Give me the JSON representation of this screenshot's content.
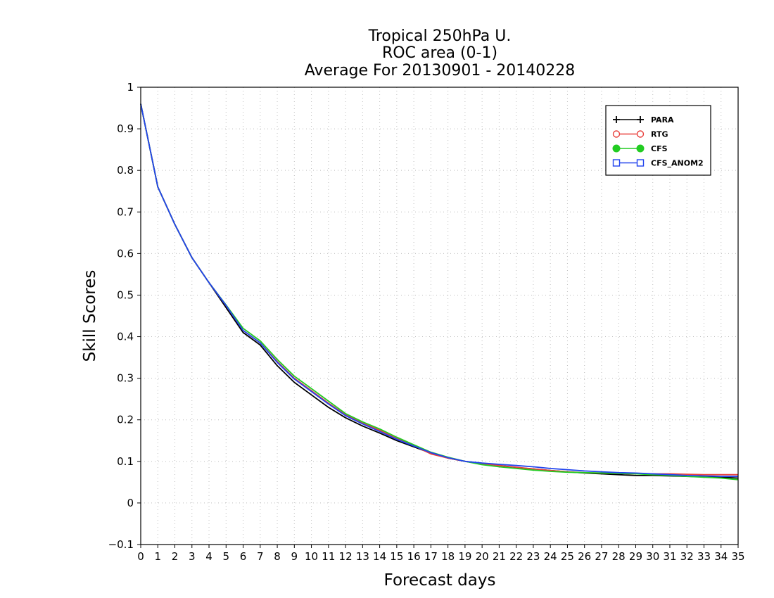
{
  "chart_data": {
    "type": "line",
    "title": [
      "Tropical 250hPa U.",
      "ROC area (0-1)",
      "Average For 20130901 - 20140228"
    ],
    "xlabel": "Forecast days",
    "ylabel": "Skill Scores",
    "xlim": [
      0,
      35
    ],
    "ylim": [
      -0.1,
      1
    ],
    "xticks": [
      0,
      1,
      2,
      3,
      4,
      5,
      6,
      7,
      8,
      9,
      10,
      11,
      12,
      13,
      14,
      15,
      16,
      17,
      18,
      19,
      20,
      21,
      22,
      23,
      24,
      25,
      26,
      27,
      28,
      29,
      30,
      31,
      32,
      33,
      34,
      35
    ],
    "yticks": [
      -0.1,
      0,
      0.1,
      0.2,
      0.3,
      0.4,
      0.5,
      0.6,
      0.7,
      0.8,
      0.9,
      1
    ],
    "ytick_labels": [
      "−0.1",
      "0",
      "0.1",
      "0.2",
      "0.3",
      "0.4",
      "0.5",
      "0.6",
      "0.7",
      "0.8",
      "0.9",
      "1"
    ],
    "grid": true,
    "legend_position": "top-right",
    "x": [
      0,
      1,
      2,
      3,
      4,
      5,
      6,
      7,
      8,
      9,
      10,
      11,
      12,
      13,
      14,
      15,
      16,
      17,
      18,
      19,
      20,
      21,
      22,
      23,
      24,
      25,
      26,
      27,
      28,
      29,
      30,
      31,
      32,
      33,
      34,
      35
    ],
    "series": [
      {
        "name": "PARA",
        "color": "#000000",
        "marker": "plus",
        "values": [
          0.96,
          0.76,
          0.67,
          0.59,
          0.53,
          0.47,
          0.41,
          0.38,
          0.33,
          0.29,
          0.26,
          0.23,
          0.205,
          0.185,
          0.168,
          0.15,
          0.135,
          0.12,
          0.108,
          0.1,
          0.095,
          0.09,
          0.085,
          0.082,
          0.078,
          0.075,
          0.072,
          0.07,
          0.068,
          0.066,
          0.066,
          0.065,
          0.064,
          0.063,
          0.062,
          0.06
        ]
      },
      {
        "name": "RTG",
        "color": "#e8403c",
        "marker": "circle-open",
        "values": [
          0.96,
          0.76,
          0.67,
          0.59,
          0.53,
          0.475,
          0.415,
          0.385,
          0.34,
          0.3,
          0.27,
          0.24,
          0.212,
          0.192,
          0.175,
          0.155,
          0.138,
          0.118,
          0.108,
          0.1,
          0.095,
          0.09,
          0.086,
          0.082,
          0.078,
          0.075,
          0.073,
          0.072,
          0.071,
          0.07,
          0.07,
          0.07,
          0.069,
          0.068,
          0.068,
          0.068
        ]
      },
      {
        "name": "CFS",
        "color": "#22cc22",
        "marker": "circle-filled",
        "values": [
          0.96,
          0.76,
          0.67,
          0.59,
          0.53,
          0.476,
          0.42,
          0.39,
          0.345,
          0.305,
          0.275,
          0.245,
          0.215,
          0.195,
          0.178,
          0.158,
          0.14,
          0.122,
          0.11,
          0.1,
          0.092,
          0.087,
          0.083,
          0.079,
          0.076,
          0.074,
          0.073,
          0.072,
          0.071,
          0.07,
          0.068,
          0.066,
          0.064,
          0.062,
          0.06,
          0.056
        ]
      },
      {
        "name": "CFS_ANOM2",
        "color": "#2244ee",
        "marker": "square-open",
        "values": [
          0.96,
          0.76,
          0.67,
          0.59,
          0.53,
          0.475,
          0.415,
          0.385,
          0.338,
          0.298,
          0.268,
          0.238,
          0.21,
          0.19,
          0.172,
          0.153,
          0.137,
          0.121,
          0.109,
          0.1,
          0.096,
          0.093,
          0.09,
          0.087,
          0.083,
          0.08,
          0.077,
          0.075,
          0.073,
          0.072,
          0.07,
          0.068,
          0.066,
          0.065,
          0.064,
          0.064
        ]
      }
    ]
  }
}
